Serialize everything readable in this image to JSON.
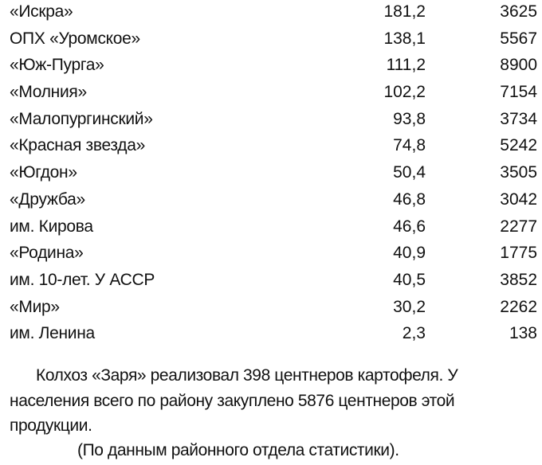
{
  "table": {
    "rows": [
      {
        "name": "«Искра»",
        "value1": "181,2",
        "value2": "3625"
      },
      {
        "name": "ОПХ «Уромское»",
        "value1": "138,1",
        "value2": "5567"
      },
      {
        "name": "«Юж-Пурга»",
        "value1": "111,2",
        "value2": "8900"
      },
      {
        "name": "«Молния»",
        "value1": "102,2",
        "value2": "7154"
      },
      {
        "name": "«Малопургинский»",
        "value1": "93,8",
        "value2": "3734"
      },
      {
        "name": "«Красная звезда»",
        "value1": "74,8",
        "value2": "5242"
      },
      {
        "name": "«Югдон»",
        "value1": "50,4",
        "value2": "3505"
      },
      {
        "name": "«Дружба»",
        "value1": "46,8",
        "value2": "3042"
      },
      {
        "name": "им. Кирова",
        "value1": "46,6",
        "value2": "2277"
      },
      {
        "name": "«Родина»",
        "value1": "40,9",
        "value2": "1775"
      },
      {
        "name": "им. 10-лет. У  АССР",
        "value1": "40,5",
        "value2": "3852"
      },
      {
        "name": "«Мир»",
        "value1": "30,2",
        "value2": "2262"
      },
      {
        "name": "им. Ленина",
        "value1": "2,3",
        "value2": "138"
      }
    ]
  },
  "paragraph": "Колхоз «Заря» реализовал 398 центнеров картофеля. У населения всего по району закуплено 5876 центнеров этой продукции.",
  "source": "(По данным районного отдела статистики)."
}
